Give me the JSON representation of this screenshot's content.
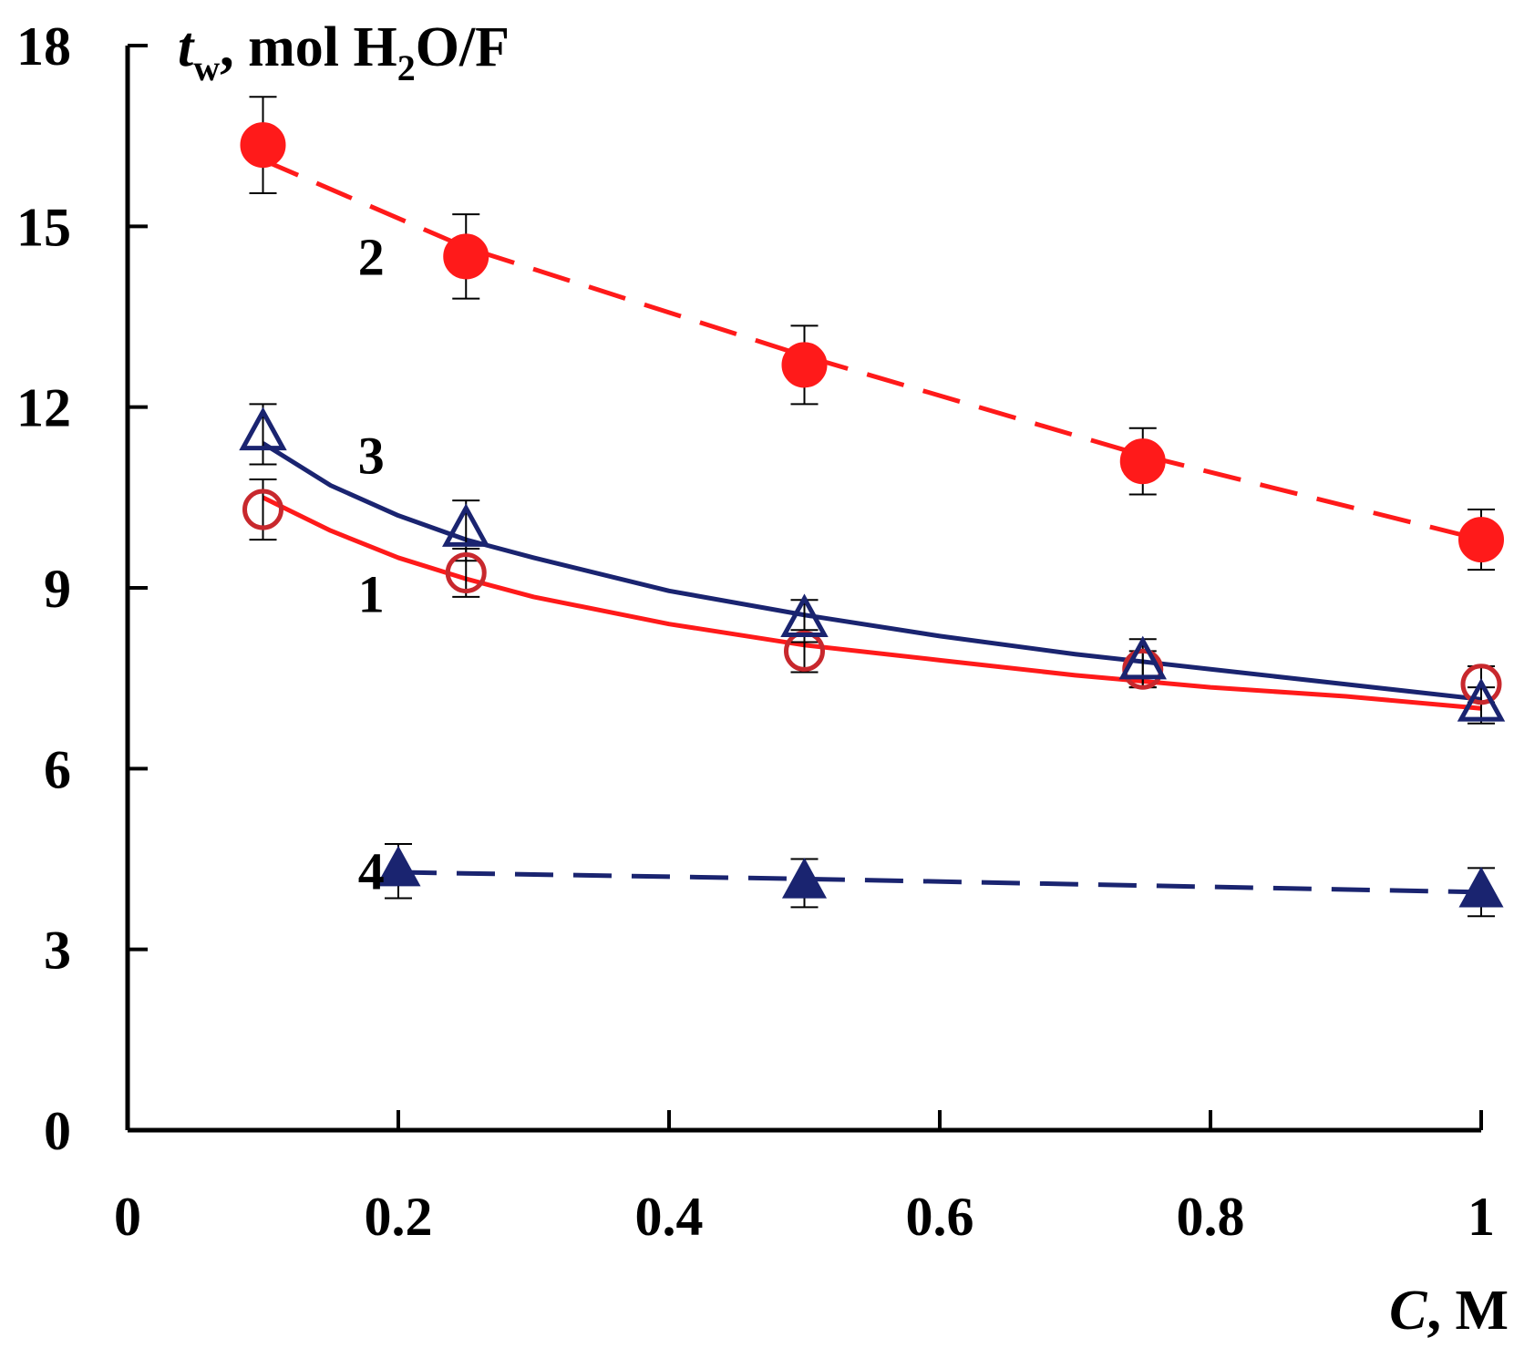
{
  "chart_data": {
    "type": "scatter",
    "title": "",
    "xlabel": {
      "italic": "C",
      "rest": ", M"
    },
    "ylabel": {
      "italic": "t",
      "sub": "w",
      "mid": ", mol H",
      "sub2": "2",
      "rest": "O/F"
    },
    "xlim": [
      0,
      1
    ],
    "ylim": [
      0,
      18
    ],
    "xticks": [
      0,
      0.2,
      0.4,
      0.6,
      0.8,
      1
    ],
    "xtick_labels": [
      "0",
      "0.2",
      "0.4",
      "0.6",
      "0.8",
      "1"
    ],
    "yticks": [
      0,
      3,
      6,
      9,
      12,
      15,
      18
    ],
    "ytick_labels": [
      "0",
      "3",
      "6",
      "9",
      "12",
      "15",
      "18"
    ],
    "grid": false,
    "series": [
      {
        "name": "1",
        "marker": "open-circle",
        "color": "#c8282d",
        "line_color": "#ff1a1a",
        "line_style": "solid",
        "label_pos": [
          0.18,
          8.9
        ],
        "x": [
          0.1,
          0.25,
          0.5,
          0.75,
          1.0
        ],
        "y": [
          10.3,
          9.25,
          7.95,
          7.65,
          7.4
        ],
        "err": [
          0.5,
          0.4,
          0.35,
          0.3,
          0.3
        ],
        "fit_x": [
          0.1,
          0.15,
          0.2,
          0.25,
          0.3,
          0.4,
          0.5,
          0.6,
          0.7,
          0.8,
          0.9,
          1.0
        ],
        "fit_y": [
          10.5,
          9.95,
          9.5,
          9.15,
          8.85,
          8.4,
          8.05,
          7.8,
          7.55,
          7.35,
          7.2,
          7.0
        ]
      },
      {
        "name": "2",
        "marker": "filled-circle",
        "color": "#ff1a1a",
        "line_color": "#ff1a1a",
        "line_style": "dashed",
        "label_pos": [
          0.18,
          14.5
        ],
        "x": [
          0.1,
          0.25,
          0.5,
          0.75,
          1.0
        ],
        "y": [
          16.35,
          14.5,
          12.7,
          11.1,
          9.8
        ],
        "err": [
          0.8,
          0.7,
          0.65,
          0.55,
          0.5
        ],
        "fit_x": [
          0.1,
          0.25,
          0.5,
          0.75,
          1.0
        ],
        "fit_y": [
          16.1,
          14.65,
          12.85,
          11.2,
          9.8
        ]
      },
      {
        "name": "3",
        "marker": "open-triangle",
        "color": "#1a2470",
        "line_color": "#1a2470",
        "line_style": "solid",
        "label_pos": [
          0.18,
          11.2
        ],
        "x": [
          0.1,
          0.25,
          0.5,
          0.75,
          1.0
        ],
        "y": [
          11.55,
          9.95,
          8.45,
          7.75,
          7.05
        ],
        "err": [
          0.5,
          0.5,
          0.35,
          0.4,
          0.3
        ],
        "fit_x": [
          0.1,
          0.15,
          0.2,
          0.25,
          0.3,
          0.4,
          0.5,
          0.6,
          0.7,
          0.8,
          0.9,
          1.0
        ],
        "fit_y": [
          11.4,
          10.7,
          10.2,
          9.8,
          9.5,
          8.95,
          8.55,
          8.2,
          7.9,
          7.65,
          7.4,
          7.15
        ]
      },
      {
        "name": "4",
        "marker": "filled-triangle",
        "color": "#1a2470",
        "line_color": "#1a2470",
        "line_style": "dashed",
        "label_pos": [
          0.18,
          4.3
        ],
        "x": [
          0.2,
          0.5,
          1.0
        ],
        "y": [
          4.3,
          4.1,
          3.95
        ],
        "err": [
          0.45,
          0.4,
          0.4
        ],
        "fit_x": [
          0.2,
          0.5,
          1.0
        ],
        "fit_y": [
          4.28,
          4.17,
          3.95
        ]
      }
    ]
  }
}
